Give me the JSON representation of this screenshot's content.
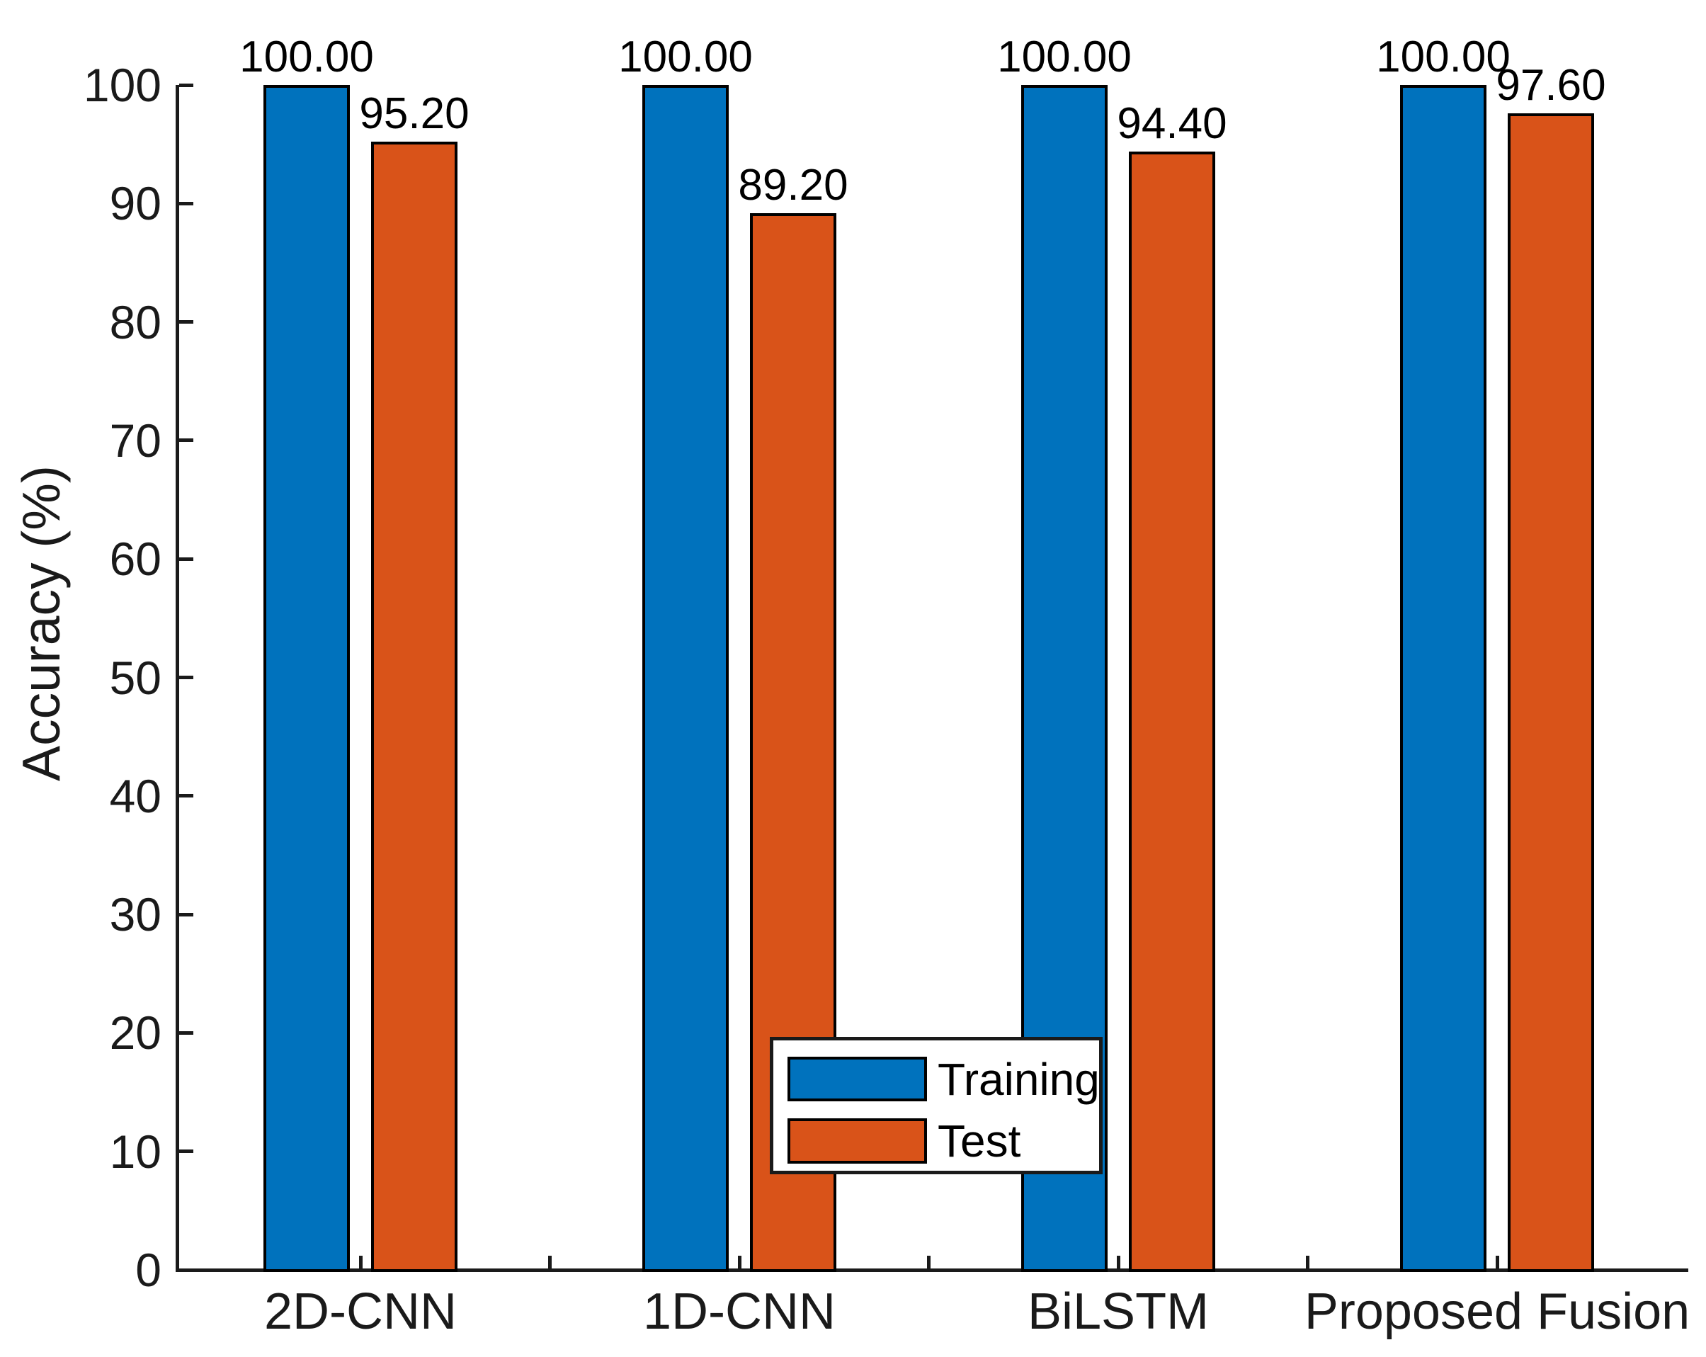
{
  "chart_data": {
    "type": "bar",
    "title": "",
    "xlabel": "",
    "ylabel": "Accuracy (%)",
    "categories": [
      "2D-CNN",
      "1D-CNN",
      "BiLSTM",
      "Proposed Fusion"
    ],
    "series": [
      {
        "name": "Training",
        "color": "#0072BD",
        "values": [
          100.0,
          100.0,
          100.0,
          100.0
        ],
        "labels": [
          "100.00",
          "100.00",
          "100.00",
          "100.00"
        ]
      },
      {
        "name": "Test",
        "color": "#D95319",
        "values": [
          95.2,
          89.2,
          94.4,
          97.6
        ],
        "labels": [
          "95.20",
          "89.20",
          "94.40",
          "97.60"
        ]
      }
    ],
    "ylim": [
      0,
      100
    ],
    "yticks": [
      0,
      10,
      20,
      30,
      40,
      50,
      60,
      70,
      80,
      90,
      100
    ],
    "grid": false,
    "bar_edge_color": "#000000",
    "axis_color": "#1a1a1a",
    "legend": {
      "position": "inside-bottom-center",
      "entries": [
        "Training",
        "Test"
      ]
    }
  }
}
